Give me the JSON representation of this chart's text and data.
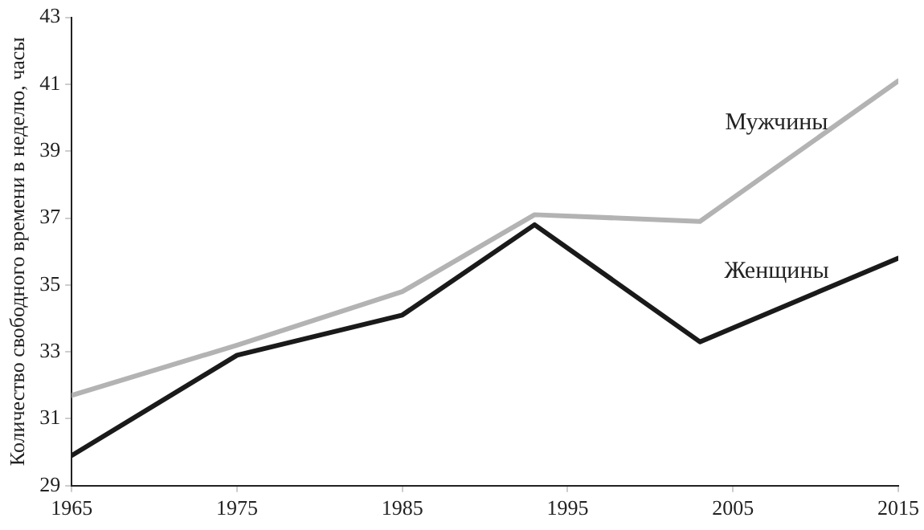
{
  "chart_data": {
    "type": "line",
    "ylabel": "Количество свободного времени в неделю, часы",
    "x": [
      1965,
      1975,
      1985,
      1993,
      2003,
      2015
    ],
    "series": [
      {
        "name": "Мужчины",
        "color": "#b3b3b3",
        "values": [
          31.7,
          33.2,
          34.8,
          37.1,
          36.9,
          41.1
        ]
      },
      {
        "name": "Женщины",
        "color": "#1a1a1a",
        "values": [
          29.9,
          32.9,
          34.1,
          36.8,
          33.3,
          35.8
        ]
      }
    ],
    "xlim": [
      1965,
      2015
    ],
    "xticks": [
      1965,
      1975,
      1985,
      1995,
      2005,
      2015
    ],
    "ylim": [
      29,
      43
    ],
    "yticks": [
      29,
      31,
      33,
      35,
      37,
      39,
      41,
      43
    ],
    "grid": false,
    "legend": false,
    "marker": "none",
    "line_style": "solid"
  }
}
